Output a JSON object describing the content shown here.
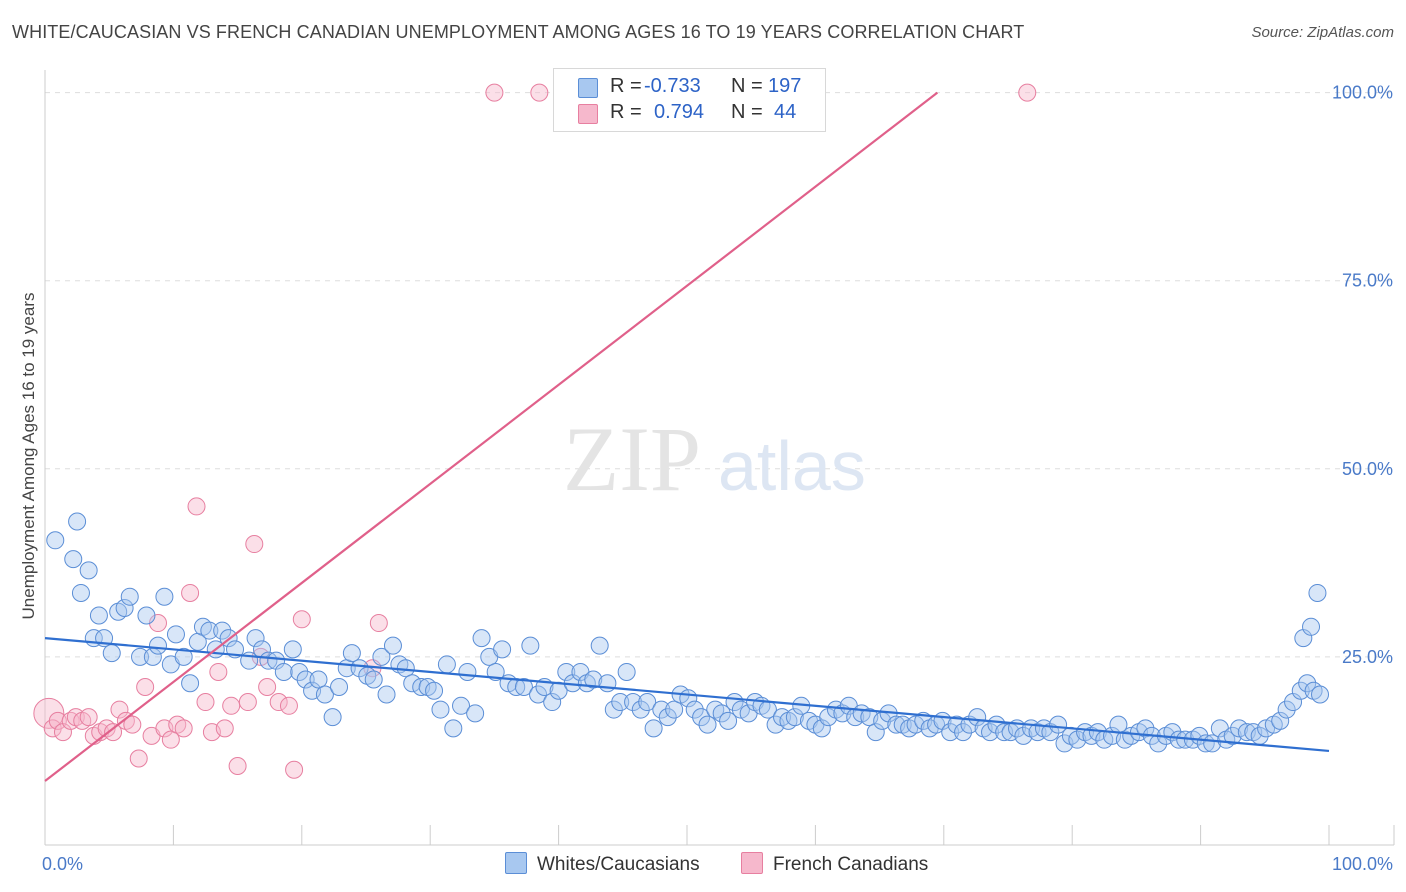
{
  "title": "WHITE/CAUCASIAN VS FRENCH CANADIAN UNEMPLOYMENT AMONG AGES 16 TO 19 YEARS CORRELATION CHART",
  "source": "Source: ZipAtlas.com",
  "watermark": {
    "zip": "ZIP",
    "atlas": "atlas"
  },
  "legend": {
    "rows": [
      {
        "r_label": "R =",
        "r_value": "-0.733",
        "n_label": "N =",
        "n_value": "197"
      },
      {
        "r_label": "R =",
        "r_value": "0.794",
        "n_label": "N =",
        "n_value": "44"
      }
    ]
  },
  "bottom_legend": {
    "series1": "Whites/Caucasians",
    "series2": "French Canadians"
  },
  "colors": {
    "white_fill": "#a8c8f0",
    "white_stroke": "#5b8ed6",
    "white_line": "#2f6fd0",
    "french_fill": "#f6b8cc",
    "french_stroke": "#e77fa0",
    "french_line": "#e0608a",
    "tick_label": "#4a7ac8",
    "grid": "#dddddd"
  },
  "chart_data": {
    "type": "scatter",
    "xlabel": "",
    "ylabel": "Unemployment Among Ages 16 to 19 years",
    "xlim": [
      0,
      100
    ],
    "ylim": [
      0,
      105
    ],
    "x_tick_labels": [
      "0.0%",
      "100.0%"
    ],
    "y_ticks": [
      25,
      50,
      75,
      100
    ],
    "y_tick_labels": [
      "25.0%",
      "50.0%",
      "75.0%",
      "100.0%"
    ],
    "grid": true,
    "legend_position": "top-center",
    "series": [
      {
        "name": "Whites/Caucasians",
        "r": -0.733,
        "n": 197,
        "trend": [
          [
            0,
            27.5
          ],
          [
            100,
            12.5
          ]
        ],
        "points": [
          [
            0.8,
            40.5
          ],
          [
            2.2,
            38
          ],
          [
            2.5,
            43
          ],
          [
            2.8,
            33.5
          ],
          [
            3.4,
            36.5
          ],
          [
            3.8,
            27.5
          ],
          [
            4.2,
            30.5
          ],
          [
            4.6,
            27.5
          ],
          [
            5.2,
            25.5
          ],
          [
            5.7,
            31
          ],
          [
            6.2,
            31.5
          ],
          [
            6.6,
            33
          ],
          [
            7.4,
            25
          ],
          [
            7.9,
            30.5
          ],
          [
            8.4,
            25
          ],
          [
            8.8,
            26.5
          ],
          [
            9.3,
            33
          ],
          [
            9.8,
            24
          ],
          [
            10.2,
            28
          ],
          [
            10.8,
            25
          ],
          [
            11.3,
            21.5
          ],
          [
            11.9,
            27
          ],
          [
            12.3,
            29
          ],
          [
            12.8,
            28.5
          ],
          [
            13.3,
            26
          ],
          [
            13.8,
            28.5
          ],
          [
            14.3,
            27.5
          ],
          [
            14.8,
            26
          ],
          [
            15.9,
            24.5
          ],
          [
            16.4,
            27.5
          ],
          [
            16.9,
            26
          ],
          [
            17.4,
            24.5
          ],
          [
            18.0,
            24.5
          ],
          [
            18.6,
            23
          ],
          [
            19.3,
            26
          ],
          [
            19.8,
            23
          ],
          [
            20.3,
            22
          ],
          [
            20.8,
            20.5
          ],
          [
            21.3,
            22
          ],
          [
            21.8,
            20
          ],
          [
            22.4,
            17
          ],
          [
            22.9,
            21
          ],
          [
            23.5,
            23.5
          ],
          [
            23.9,
            25.5
          ],
          [
            24.5,
            23.5
          ],
          [
            25.1,
            22.5
          ],
          [
            25.6,
            22
          ],
          [
            26.2,
            25
          ],
          [
            26.6,
            20
          ],
          [
            27.1,
            26.5
          ],
          [
            27.6,
            24
          ],
          [
            28.1,
            23.5
          ],
          [
            28.6,
            21.5
          ],
          [
            29.3,
            21
          ],
          [
            29.8,
            21
          ],
          [
            30.3,
            20.5
          ],
          [
            30.8,
            18
          ],
          [
            31.3,
            24
          ],
          [
            31.8,
            15.5
          ],
          [
            32.4,
            18.5
          ],
          [
            32.9,
            23
          ],
          [
            33.5,
            17.5
          ],
          [
            34.0,
            27.5
          ],
          [
            34.6,
            25
          ],
          [
            35.1,
            23
          ],
          [
            35.6,
            26
          ],
          [
            36.1,
            21.5
          ],
          [
            36.7,
            21
          ],
          [
            37.3,
            21
          ],
          [
            37.8,
            26.5
          ],
          [
            38.4,
            20
          ],
          [
            38.9,
            21
          ],
          [
            39.5,
            19
          ],
          [
            40.0,
            20.5
          ],
          [
            40.6,
            23
          ],
          [
            41.1,
            21.5
          ],
          [
            41.7,
            23
          ],
          [
            42.2,
            21.5
          ],
          [
            42.7,
            22
          ],
          [
            43.2,
            26.5
          ],
          [
            43.8,
            21.5
          ],
          [
            44.3,
            18
          ],
          [
            44.8,
            19
          ],
          [
            45.3,
            23
          ],
          [
            45.8,
            19
          ],
          [
            46.4,
            18
          ],
          [
            46.9,
            19
          ],
          [
            47.4,
            15.5
          ],
          [
            48.0,
            18
          ],
          [
            48.5,
            17
          ],
          [
            49.0,
            18
          ],
          [
            49.5,
            20
          ],
          [
            50.1,
            19.5
          ],
          [
            50.6,
            18
          ],
          [
            51.1,
            17
          ],
          [
            51.6,
            16
          ],
          [
            52.2,
            18
          ],
          [
            52.7,
            17.5
          ],
          [
            53.2,
            16.5
          ],
          [
            53.7,
            19
          ],
          [
            54.2,
            18
          ],
          [
            54.8,
            17.5
          ],
          [
            55.3,
            19
          ],
          [
            55.8,
            18.5
          ],
          [
            56.3,
            18
          ],
          [
            56.9,
            16
          ],
          [
            57.4,
            17
          ],
          [
            57.9,
            16.5
          ],
          [
            58.4,
            17
          ],
          [
            58.9,
            18.5
          ],
          [
            59.5,
            16.5
          ],
          [
            60.0,
            16
          ],
          [
            60.5,
            15.5
          ],
          [
            61.0,
            17
          ],
          [
            61.6,
            18
          ],
          [
            62.1,
            17.5
          ],
          [
            62.6,
            18.5
          ],
          [
            63.1,
            17
          ],
          [
            63.6,
            17.5
          ],
          [
            64.2,
            17
          ],
          [
            64.7,
            15
          ],
          [
            65.2,
            16.5
          ],
          [
            65.7,
            17.5
          ],
          [
            66.3,
            16
          ],
          [
            66.8,
            16
          ],
          [
            67.3,
            15.5
          ],
          [
            67.8,
            16
          ],
          [
            68.4,
            16.5
          ],
          [
            68.9,
            15.5
          ],
          [
            69.4,
            16
          ],
          [
            69.9,
            16.5
          ],
          [
            70.5,
            15
          ],
          [
            71.0,
            16
          ],
          [
            71.5,
            15
          ],
          [
            72.0,
            16
          ],
          [
            72.6,
            17
          ],
          [
            73.1,
            15.5
          ],
          [
            73.6,
            15
          ],
          [
            74.1,
            16
          ],
          [
            74.7,
            15
          ],
          [
            75.2,
            15
          ],
          [
            75.7,
            15.5
          ],
          [
            76.2,
            14.5
          ],
          [
            76.8,
            15.5
          ],
          [
            77.3,
            15
          ],
          [
            77.8,
            15.5
          ],
          [
            78.3,
            15
          ],
          [
            78.9,
            16
          ],
          [
            79.4,
            13.5
          ],
          [
            79.9,
            14.5
          ],
          [
            80.4,
            14
          ],
          [
            81.0,
            15
          ],
          [
            81.5,
            14.5
          ],
          [
            82.0,
            15
          ],
          [
            82.5,
            14
          ],
          [
            83.1,
            14.5
          ],
          [
            83.6,
            16
          ],
          [
            84.1,
            14
          ],
          [
            84.6,
            14.5
          ],
          [
            85.2,
            15
          ],
          [
            85.7,
            15.5
          ],
          [
            86.2,
            14.5
          ],
          [
            86.7,
            13.5
          ],
          [
            87.3,
            14.5
          ],
          [
            87.8,
            15
          ],
          [
            88.3,
            14
          ],
          [
            88.8,
            14
          ],
          [
            89.4,
            14
          ],
          [
            89.9,
            14.5
          ],
          [
            90.4,
            13.5
          ],
          [
            90.9,
            13.5
          ],
          [
            91.5,
            15.5
          ],
          [
            92.0,
            14
          ],
          [
            92.5,
            14.5
          ],
          [
            93.0,
            15.5
          ],
          [
            93.6,
            15
          ],
          [
            94.1,
            15
          ],
          [
            94.6,
            14.5
          ],
          [
            95.1,
            15.5
          ],
          [
            95.7,
            16
          ],
          [
            96.2,
            16.5
          ],
          [
            96.7,
            18
          ],
          [
            97.2,
            19
          ],
          [
            97.8,
            20.5
          ],
          [
            98.3,
            21.5
          ],
          [
            98.8,
            20.5
          ],
          [
            99.3,
            20
          ],
          [
            98.0,
            27.5
          ],
          [
            98.6,
            29
          ],
          [
            99.1,
            33.5
          ]
        ]
      },
      {
        "name": "French Canadians",
        "r": 0.794,
        "n": 44,
        "trend": [
          [
            0,
            8.5
          ],
          [
            69.5,
            100
          ]
        ],
        "points": [
          [
            0.3,
            17.5
          ],
          [
            0.6,
            15.5
          ],
          [
            1.0,
            16.5
          ],
          [
            1.4,
            15
          ],
          [
            2.0,
            16.5
          ],
          [
            2.4,
            17
          ],
          [
            2.9,
            16.5
          ],
          [
            3.4,
            17
          ],
          [
            3.8,
            14.5
          ],
          [
            4.3,
            15
          ],
          [
            4.8,
            15.5
          ],
          [
            5.3,
            15
          ],
          [
            5.8,
            18
          ],
          [
            6.3,
            16.5
          ],
          [
            6.8,
            16
          ],
          [
            7.3,
            11.5
          ],
          [
            7.8,
            21
          ],
          [
            8.3,
            14.5
          ],
          [
            8.8,
            29.5
          ],
          [
            9.3,
            15.5
          ],
          [
            9.8,
            14
          ],
          [
            10.3,
            16
          ],
          [
            10.8,
            15.5
          ],
          [
            11.3,
            33.5
          ],
          [
            11.8,
            45
          ],
          [
            12.5,
            19
          ],
          [
            13.0,
            15
          ],
          [
            13.5,
            23
          ],
          [
            14.0,
            15.5
          ],
          [
            14.5,
            18.5
          ],
          [
            15.0,
            10.5
          ],
          [
            15.8,
            19
          ],
          [
            16.3,
            40
          ],
          [
            16.8,
            25
          ],
          [
            17.3,
            21
          ],
          [
            18.2,
            19
          ],
          [
            19.0,
            18.5
          ],
          [
            19.4,
            10
          ],
          [
            20.0,
            30
          ],
          [
            25.5,
            23.5
          ],
          [
            26.0,
            29.5
          ],
          [
            35.0,
            100
          ],
          [
            38.5,
            100
          ],
          [
            76.5,
            100
          ]
        ]
      }
    ]
  }
}
